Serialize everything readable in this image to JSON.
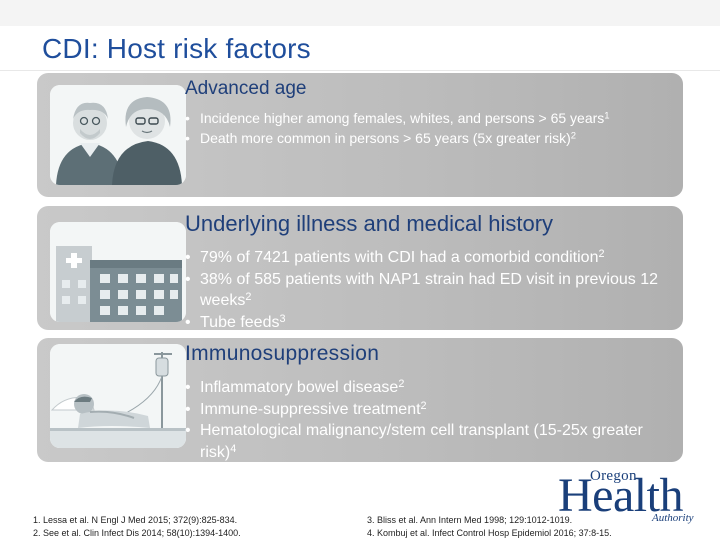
{
  "slide": {
    "title": "CDI: Host risk factors"
  },
  "panels": [
    {
      "title": "Advanced age",
      "image": "elderly-couple-icon",
      "bullets": [
        {
          "text": "Incidence higher among females, whites, and persons > 65 years",
          "ref": "1"
        },
        {
          "text": "Death more common in persons > 65 years (5x greater risk)",
          "ref": "2"
        }
      ]
    },
    {
      "title": "Underlying illness and medical history",
      "image": "hospital-building-icon",
      "bullets": [
        {
          "text": "79% of 7421 patients with CDI had a comorbid condition",
          "ref": "2"
        },
        {
          "text": "38% of 585 patients with NAP1 strain had ED visit in previous 12 weeks",
          "ref": "2"
        },
        {
          "text": "Tube feeds",
          "ref": "3"
        }
      ]
    },
    {
      "title": "Immunosuppression",
      "image": "hospital-patient-icon",
      "bullets": [
        {
          "text": "Inflammatory bowel disease",
          "ref": "2"
        },
        {
          "text": "Immune-suppressive treatment",
          "ref": "2"
        },
        {
          "text": "Hematological malignancy/stem cell transplant (15-25x greater risk)",
          "ref": "4"
        }
      ]
    }
  ],
  "references": {
    "left": [
      "1. Lessa et al. N Engl J Med 2015; 372(9):825-834.",
      "2. See et al. Clin Infect Dis 2014; 58(10):1394-1400."
    ],
    "right": [
      "3. Bliss et al. Ann Intern Med 1998; 129:1012-1019.",
      "4. Kombuj et al. Infect Control Hosp Epidemiol 2016; 37:8-15."
    ]
  },
  "logo": {
    "line1": "Oregon",
    "line2": "Health",
    "line3": "Authority"
  },
  "colors": {
    "title": "#1f4e9c",
    "panel_title": "#1f3f7a",
    "bullet_text": "#ffffff",
    "panel_bg": "#bdbdbd",
    "logo": "#1a3f7a"
  }
}
